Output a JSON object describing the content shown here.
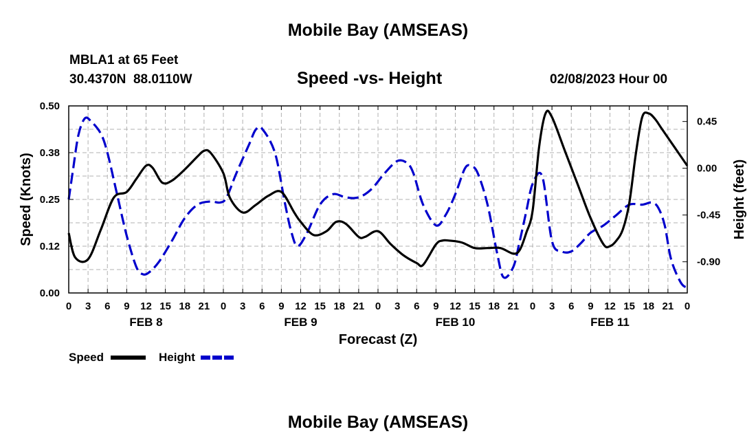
{
  "page": {
    "title_top": "Mobile Bay (AMSEAS)",
    "station_name": "MBLA1 at 65 Feet",
    "coords": "30.4370N  88.0110W",
    "date_label": "02/08/2023 Hour 00",
    "title_bottom": "Mobile Bay (AMSEAS)"
  },
  "colors": {
    "speed": "#000000",
    "height": "#0000cc",
    "grid": "#b0b0b0"
  },
  "chart_data": {
    "type": "line",
    "title": "Speed -vs- Height",
    "xlabel": "Forecast (Z)",
    "ylabel_left": "Speed (Knots)",
    "ylabel_right": "Height (feet)",
    "x_range_hours": [
      0,
      96
    ],
    "x_tick_labels": [
      "0",
      "3",
      "6",
      "9",
      "12",
      "15",
      "18",
      "21",
      "0",
      "3",
      "6",
      "9",
      "12",
      "15",
      "18",
      "21",
      "0",
      "3",
      "6",
      "9",
      "12",
      "15",
      "18",
      "21",
      "0",
      "3",
      "6",
      "9",
      "12",
      "15",
      "18",
      "21",
      "0"
    ],
    "day_labels": [
      {
        "label": "FEB 8",
        "hour": 12
      },
      {
        "label": "FEB 9",
        "hour": 36
      },
      {
        "label": "FEB 10",
        "hour": 60
      },
      {
        "label": "FEB 11",
        "hour": 84
      }
    ],
    "y_left": {
      "range": [
        0,
        0.5
      ],
      "ticks": [
        0,
        0.125,
        0.25,
        0.375,
        0.5
      ],
      "tick_labels": [
        "0.00",
        "0.12",
        "0.25",
        "0.38",
        "0.50"
      ]
    },
    "y_right": {
      "range": [
        -1.2,
        0.6
      ],
      "ticks": [
        0.45,
        0,
        -0.45,
        -0.9
      ],
      "tick_labels": [
        "0.45",
        "0.00",
        "-0.45",
        "-0.90"
      ]
    },
    "grid": true,
    "legend": {
      "placement": "bottom-left",
      "entries": [
        "Speed",
        "Height"
      ]
    },
    "series": [
      {
        "name": "Speed",
        "axis": "left",
        "x": [
          0,
          1,
          3,
          5,
          7,
          9,
          10.5,
          12,
          13,
          14.5,
          16,
          18,
          20,
          21,
          22,
          24,
          25,
          27,
          29,
          31,
          33,
          35,
          36,
          38,
          40,
          41.5,
          43,
          45,
          46,
          48,
          50,
          52,
          54,
          55,
          57,
          58,
          59,
          61,
          63,
          65,
          67,
          69,
          70,
          71,
          72,
          73,
          74,
          75,
          77,
          79,
          81,
          83,
          84,
          85,
          86,
          87,
          88,
          89,
          90,
          91,
          92,
          94,
          96
        ],
        "values": [
          0.16,
          0.095,
          0.09,
          0.17,
          0.255,
          0.27,
          0.305,
          0.34,
          0.335,
          0.295,
          0.3,
          0.33,
          0.365,
          0.38,
          0.375,
          0.32,
          0.255,
          0.215,
          0.235,
          0.26,
          0.27,
          0.215,
          0.19,
          0.155,
          0.165,
          0.19,
          0.185,
          0.15,
          0.15,
          0.165,
          0.13,
          0.1,
          0.08,
          0.075,
          0.13,
          0.14,
          0.14,
          0.135,
          0.12,
          0.12,
          0.12,
          0.105,
          0.115,
          0.16,
          0.22,
          0.39,
          0.48,
          0.47,
          0.38,
          0.29,
          0.2,
          0.13,
          0.125,
          0.14,
          0.17,
          0.24,
          0.37,
          0.47,
          0.48,
          0.465,
          0.44,
          0.39,
          0.34
        ]
      },
      {
        "name": "Height",
        "axis": "right",
        "x": [
          0,
          0.7,
          1.5,
          2.5,
          3.5,
          5,
          6,
          7.5,
          9,
          10.5,
          11.5,
          12.5,
          14,
          16,
          18,
          20,
          22,
          23.5,
          24.5,
          26,
          28,
          29,
          30,
          32,
          33.5,
          34.5,
          35.5,
          37,
          39,
          41,
          43,
          45,
          47,
          49,
          51,
          52.5,
          53.5,
          55,
          57,
          58.5,
          60,
          61.5,
          62.5,
          63.5,
          65,
          66.5,
          67.5,
          69,
          70,
          71,
          72,
          73.5,
          75,
          76.5,
          78,
          79.5,
          81,
          83,
          85,
          87,
          89,
          90.5,
          91.5,
          92.5,
          93.5,
          95,
          96
        ],
        "values": [
          -0.3,
          0.0,
          0.32,
          0.48,
          0.45,
          0.33,
          0.15,
          -0.25,
          -0.65,
          -0.95,
          -1.02,
          -1.0,
          -0.9,
          -0.7,
          -0.48,
          -0.35,
          -0.32,
          -0.33,
          -0.28,
          -0.05,
          0.23,
          0.37,
          0.38,
          0.15,
          -0.32,
          -0.6,
          -0.75,
          -0.62,
          -0.35,
          -0.25,
          -0.28,
          -0.28,
          -0.2,
          -0.05,
          0.07,
          0.05,
          -0.05,
          -0.35,
          -0.55,
          -0.45,
          -0.25,
          0.0,
          0.02,
          -0.05,
          -0.35,
          -0.82,
          -1.05,
          -0.95,
          -0.7,
          -0.42,
          -0.15,
          -0.08,
          -0.7,
          -0.8,
          -0.8,
          -0.72,
          -0.62,
          -0.55,
          -0.45,
          -0.35,
          -0.35,
          -0.33,
          -0.38,
          -0.55,
          -0.88,
          -1.1,
          -1.15
        ]
      }
    ]
  }
}
